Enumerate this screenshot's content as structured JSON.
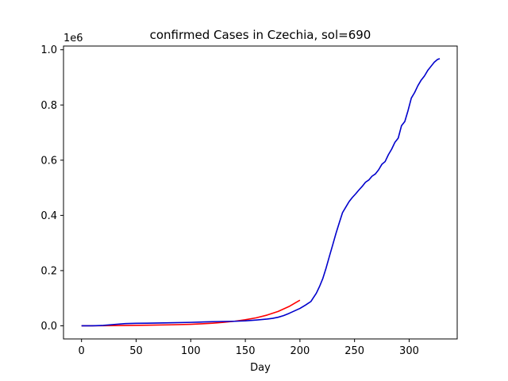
{
  "chart_data": {
    "type": "line",
    "title": "confirmed Cases in Czechia, sol=690",
    "xlabel": "Day",
    "ylabel": "",
    "y_offset_label": "1e6",
    "xlim": [
      -16.5,
      344
    ],
    "ylim": [
      -0.0475,
      1.0135
    ],
    "x_ticks": [
      0,
      50,
      100,
      150,
      200,
      250,
      300
    ],
    "x_tick_labels": [
      "0",
      "50",
      "100",
      "150",
      "200",
      "250",
      "300"
    ],
    "y_ticks": [
      0.0,
      0.2,
      0.4,
      0.6,
      0.8,
      1.0
    ],
    "y_tick_labels": [
      "0.0",
      "0.2",
      "0.4",
      "0.6",
      "0.8",
      "1.0"
    ],
    "grid": false,
    "legend": "none",
    "series": [
      {
        "color": "#ff0000",
        "x": [
          0,
          20,
          40,
          60,
          80,
          100,
          110,
          120,
          130,
          140,
          150,
          160,
          170,
          180,
          190,
          200
        ],
        "y": [
          0.0,
          0.0005,
          0.0012,
          0.0022,
          0.0035,
          0.0055,
          0.0072,
          0.0095,
          0.0125,
          0.0165,
          0.022,
          0.029,
          0.039,
          0.052,
          0.07,
          0.093
        ]
      },
      {
        "color": "#0000cc",
        "x": [
          0,
          10,
          20,
          30,
          40,
          50,
          60,
          80,
          100,
          120,
          140,
          150,
          160,
          170,
          175,
          180,
          185,
          190,
          195,
          200,
          205,
          210,
          212,
          215,
          218,
          221,
          224,
          227,
          230,
          233,
          236,
          239,
          242,
          245,
          248,
          251,
          254,
          257,
          260,
          263,
          266,
          269,
          272,
          275,
          278,
          281,
          284,
          287,
          290,
          293,
          296,
          299,
          302,
          305,
          308,
          311,
          314,
          317,
          320,
          323,
          326,
          328
        ],
        "y": [
          0.0,
          0.0,
          0.0015,
          0.005,
          0.008,
          0.009,
          0.0095,
          0.011,
          0.0125,
          0.015,
          0.0165,
          0.018,
          0.021,
          0.0245,
          0.027,
          0.031,
          0.037,
          0.045,
          0.054,
          0.063,
          0.075,
          0.088,
          0.1,
          0.118,
          0.143,
          0.172,
          0.21,
          0.252,
          0.293,
          0.335,
          0.373,
          0.41,
          0.43,
          0.45,
          0.465,
          0.478,
          0.492,
          0.505,
          0.52,
          0.528,
          0.542,
          0.55,
          0.565,
          0.585,
          0.595,
          0.62,
          0.64,
          0.665,
          0.68,
          0.725,
          0.74,
          0.78,
          0.825,
          0.845,
          0.87,
          0.89,
          0.905,
          0.925,
          0.94,
          0.955,
          0.965,
          0.968
        ]
      }
    ]
  }
}
